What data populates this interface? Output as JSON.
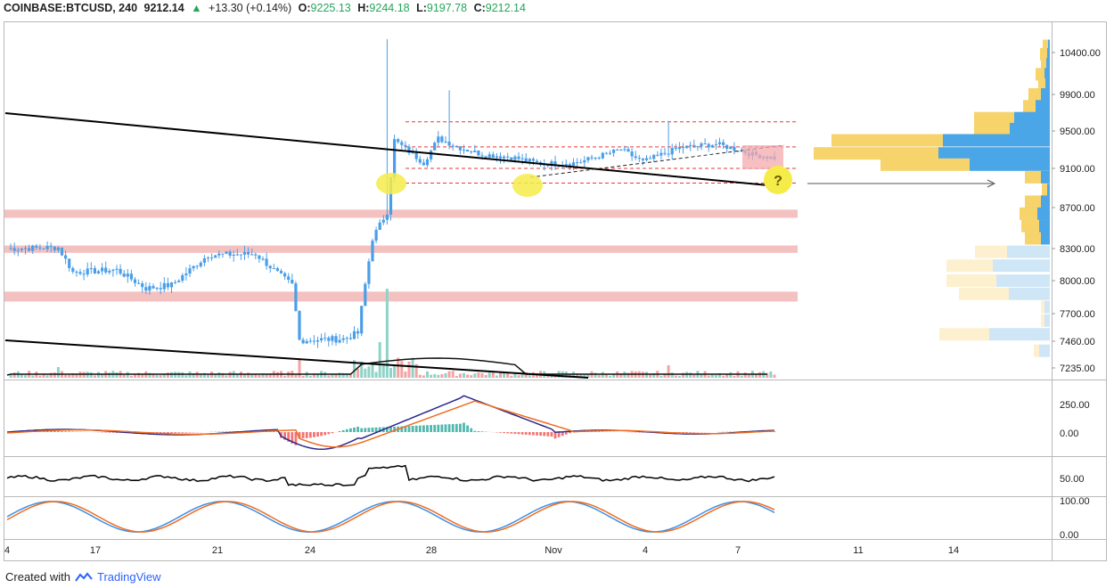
{
  "header": {
    "symbol": "COINBASE:BTCUSD, 240",
    "last": "9212.14",
    "change": "+13.30 (+0.14%)",
    "o_label": "O:",
    "o_value": "9225.13",
    "h_label": "H:",
    "h_value": "9244.18",
    "l_label": "L:",
    "l_value": "9197.78",
    "c_label": "C:",
    "c_value": "9212.14",
    "up_arrow": "▲"
  },
  "footer": {
    "created_with": "Created with",
    "brand": "TradingView"
  },
  "annotation": {
    "question": "?"
  },
  "colors": {
    "up": "#4a9ee8",
    "down": "#4a9ee8",
    "trendline": "#000000",
    "resistance": "#e53935",
    "zone": "#f4c1c1",
    "highlight": "#f5ec4a",
    "vp_buy": "#4aa6e6",
    "vp_sell": "#f7d36b",
    "macd": "#2a2a8c",
    "signal": "#ef6c1f",
    "hist_pos": "#26a69a",
    "hist_neg": "#ef5350",
    "stoch_k": "#3d8fe6",
    "stoch_d": "#ef6c1f"
  },
  "chart_data": {
    "type": "candlestick",
    "price_axis": {
      "ticks": [
        "10400.00",
        "9900.00",
        "9500.00",
        "9100.00",
        "8700.00",
        "8300.00",
        "8000.00",
        "7700.00",
        "7460.00",
        "7235.00"
      ]
    },
    "macd_axis": {
      "ticks": [
        "250.00",
        "0.00"
      ]
    },
    "rsi_axis": {
      "ticks": [
        "50.00"
      ]
    },
    "stoch_axis": {
      "ticks": [
        "100.00",
        "0.00"
      ]
    },
    "x_ticks": [
      "4",
      "17",
      "21",
      "24",
      "28",
      "Nov",
      "4",
      "7",
      "11",
      "14"
    ],
    "key_levels": [
      9600,
      9330,
      9100,
      8950
    ],
    "support_zones": [
      [
        8600,
        8680
      ],
      [
        8260,
        8330
      ],
      [
        7810,
        7900
      ]
    ],
    "anchors": [
      {
        "t": 0,
        "p": 8300
      },
      {
        "t": 14,
        "p": 8310
      },
      {
        "t": 18,
        "p": 8080
      },
      {
        "t": 30,
        "p": 8100
      },
      {
        "t": 38,
        "p": 7930
      },
      {
        "t": 45,
        "p": 7960
      },
      {
        "t": 55,
        "p": 8240
      },
      {
        "t": 68,
        "p": 8250
      },
      {
        "t": 75,
        "p": 8040
      },
      {
        "t": 78,
        "p": 7960
      },
      {
        "t": 80,
        "p": 7470
      },
      {
        "t": 92,
        "p": 7480
      },
      {
        "t": 96,
        "p": 7530
      },
      {
        "t": 100,
        "p": 8400
      },
      {
        "t": 104,
        "p": 8660
      },
      {
        "t": 106,
        "p": 9400
      },
      {
        "t": 110,
        "p": 9280
      },
      {
        "t": 114,
        "p": 9160
      },
      {
        "t": 118,
        "p": 9420
      },
      {
        "t": 124,
        "p": 9320
      },
      {
        "t": 130,
        "p": 9250
      },
      {
        "t": 138,
        "p": 9220
      },
      {
        "t": 146,
        "p": 9150
      },
      {
        "t": 156,
        "p": 9160
      },
      {
        "t": 168,
        "p": 9300
      },
      {
        "t": 174,
        "p": 9170
      },
      {
        "t": 184,
        "p": 9320
      },
      {
        "t": 194,
        "p": 9360
      },
      {
        "t": 200,
        "p": 9300
      },
      {
        "t": 204,
        "p": 9250
      },
      {
        "t": 210,
        "p": 9212
      }
    ]
  }
}
